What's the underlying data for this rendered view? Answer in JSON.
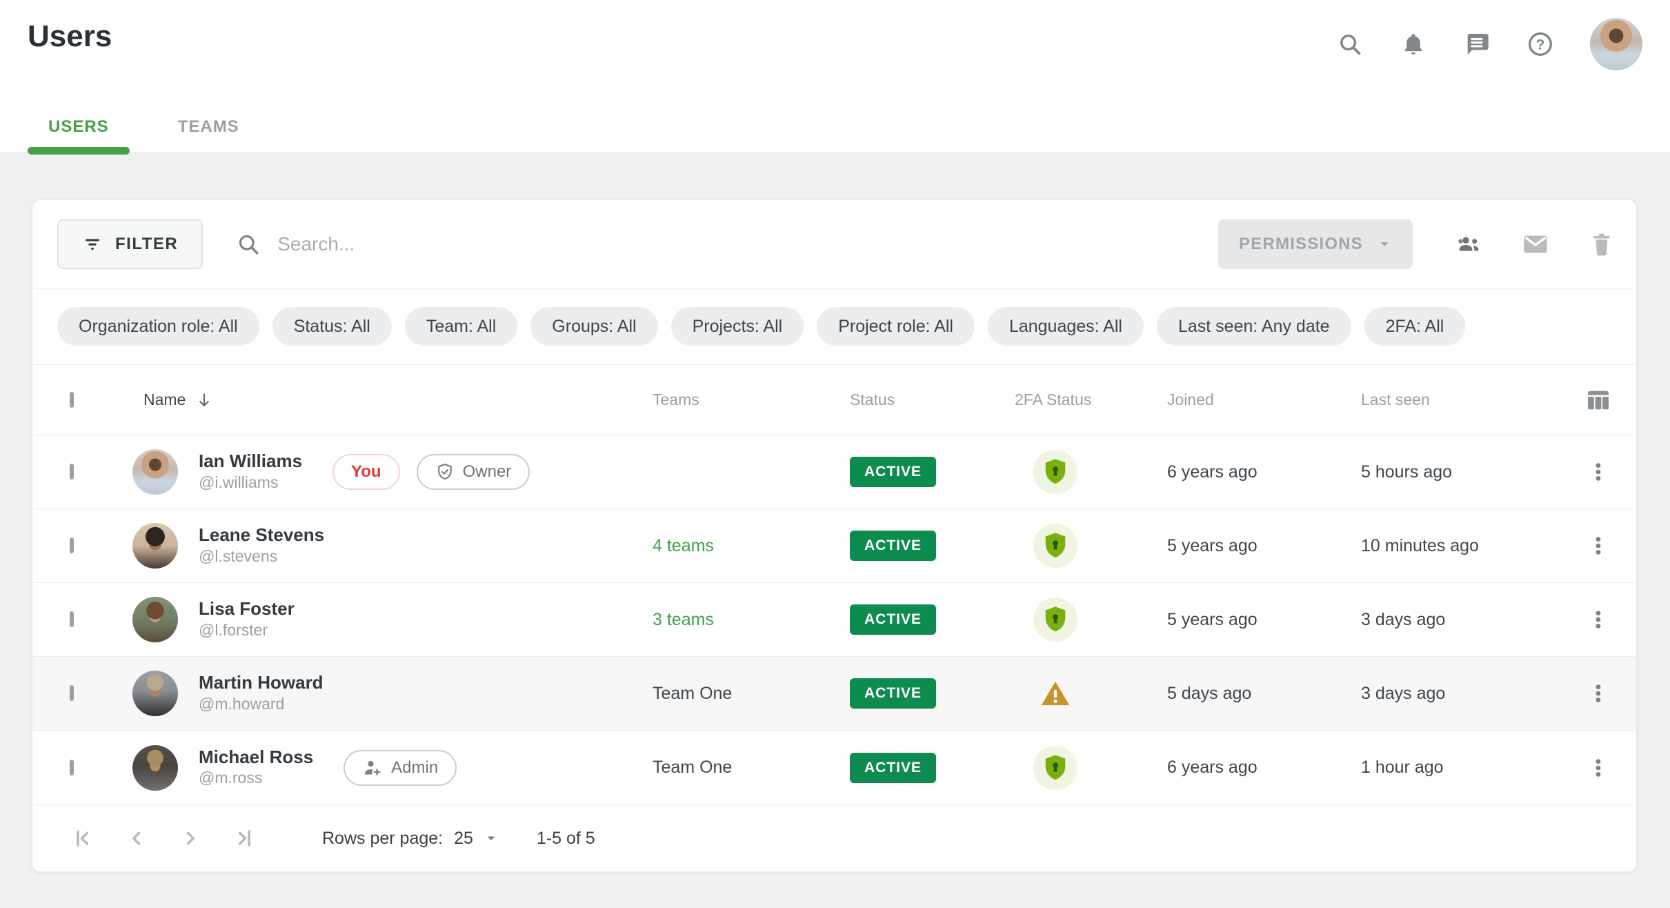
{
  "page": {
    "title": "Users"
  },
  "header": {
    "icons": [
      "search-icon",
      "notifications-icon",
      "messages-icon",
      "help-icon"
    ],
    "avatar_user": "Ian Williams",
    "avatar_id": "ian"
  },
  "tabs": [
    {
      "label": "USERS",
      "active": true
    },
    {
      "label": "TEAMS",
      "active": false
    }
  ],
  "toolbar": {
    "filter_label": "FILTER",
    "search_placeholder": "Search...",
    "permissions_label": "PERMISSIONS",
    "action_icons": [
      "add-users-icon",
      "email-icon",
      "delete-icon"
    ]
  },
  "filter_chips": [
    "Organization role: All",
    "Status: All",
    "Team: All",
    "Groups: All",
    "Projects: All",
    "Project role: All",
    "Languages: All",
    "Last seen: Any date",
    "2FA: All"
  ],
  "table": {
    "columns": {
      "name": "Name",
      "teams": "Teams",
      "status": "Status",
      "twofa": "2FA Status",
      "joined": "Joined",
      "last_seen": "Last seen"
    },
    "sort": {
      "column": "Name",
      "direction": "desc"
    },
    "rows": [
      {
        "name": "Ian Williams",
        "username": "@i.williams",
        "avatar": "ian",
        "badges": [
          {
            "type": "you",
            "label": "You"
          },
          {
            "type": "owner",
            "label": "Owner"
          }
        ],
        "teams": "",
        "teams_is_link": false,
        "status": "ACTIVE",
        "twofa": "shield-lock",
        "joined": "6 years ago",
        "last_seen": "5 hours ago",
        "highlighted": false
      },
      {
        "name": "Leane Stevens",
        "username": "@l.stevens",
        "avatar": "leane",
        "badges": [],
        "teams": "4 teams",
        "teams_is_link": true,
        "status": "ACTIVE",
        "twofa": "shield-lock",
        "joined": "5 years ago",
        "last_seen": "10 minutes ago",
        "highlighted": false
      },
      {
        "name": "Lisa Foster",
        "username": "@l.forster",
        "avatar": "lisa",
        "badges": [],
        "teams": "3 teams",
        "teams_is_link": true,
        "status": "ACTIVE",
        "twofa": "shield-lock",
        "joined": "5 years ago",
        "last_seen": "3 days ago",
        "highlighted": false
      },
      {
        "name": "Martin Howard",
        "username": "@m.howard",
        "avatar": "martin",
        "badges": [],
        "teams": "Team One",
        "teams_is_link": false,
        "status": "ACTIVE",
        "twofa": "warning",
        "joined": "5 days ago",
        "last_seen": "3 days ago",
        "highlighted": true
      },
      {
        "name": "Michael Ross",
        "username": "@m.ross",
        "avatar": "michael",
        "badges": [
          {
            "type": "admin",
            "label": "Admin"
          }
        ],
        "teams": "Team One",
        "teams_is_link": false,
        "status": "ACTIVE",
        "twofa": "shield-lock",
        "joined": "6 years ago",
        "last_seen": "1 hour ago",
        "highlighted": false
      }
    ]
  },
  "pagination": {
    "buttons": [
      "first-page-icon",
      "previous-page-icon",
      "next-page-icon",
      "last-page-icon"
    ],
    "rows_per_page_label": "Rows per page:",
    "rows_per_page": "25",
    "range": "1-5 of 5"
  },
  "colors": {
    "accent_green": "#43a047",
    "badge_green": "#0e8c50",
    "shield_green": "#79b00f",
    "warning_amber": "#c5922b",
    "you_red": "#e03b30"
  }
}
